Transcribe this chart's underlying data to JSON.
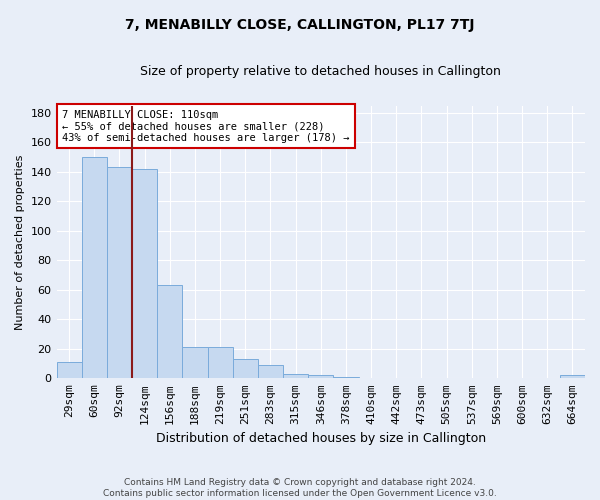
{
  "title": "7, MENABILLY CLOSE, CALLINGTON, PL17 7TJ",
  "subtitle": "Size of property relative to detached houses in Callington",
  "xlabel": "Distribution of detached houses by size in Callington",
  "ylabel": "Number of detached properties",
  "categories": [
    "29sqm",
    "60sqm",
    "92sqm",
    "124sqm",
    "156sqm",
    "188sqm",
    "219sqm",
    "251sqm",
    "283sqm",
    "315sqm",
    "346sqm",
    "378sqm",
    "410sqm",
    "442sqm",
    "473sqm",
    "505sqm",
    "537sqm",
    "569sqm",
    "600sqm",
    "632sqm",
    "664sqm"
  ],
  "values": [
    11,
    150,
    143,
    142,
    63,
    21,
    21,
    13,
    9,
    3,
    2,
    1,
    0,
    0,
    0,
    0,
    0,
    0,
    0,
    0,
    2
  ],
  "bar_color": "#c6d9f0",
  "bar_edge_color": "#7aabdb",
  "bar_edge_width": 0.7,
  "property_line_x": 2.5,
  "property_line_color": "#8b1a1a",
  "annotation_text": "7 MENABILLY CLOSE: 110sqm\n← 55% of detached houses are smaller (228)\n43% of semi-detached houses are larger (178) →",
  "annotation_box_color": "#ffffff",
  "annotation_box_edge": "#cc0000",
  "ylim": [
    0,
    185
  ],
  "yticks": [
    0,
    20,
    40,
    60,
    80,
    100,
    120,
    140,
    160,
    180
  ],
  "footer_line1": "Contains HM Land Registry data © Crown copyright and database right 2024.",
  "footer_line2": "Contains public sector information licensed under the Open Government Licence v3.0.",
  "bg_color": "#e8eef8",
  "plot_bg_color": "#e8eef8",
  "grid_color": "#ffffff",
  "title_fontsize": 10,
  "subtitle_fontsize": 9,
  "ylabel_fontsize": 8,
  "xlabel_fontsize": 9,
  "tick_fontsize": 8,
  "annotation_fontsize": 7.5
}
